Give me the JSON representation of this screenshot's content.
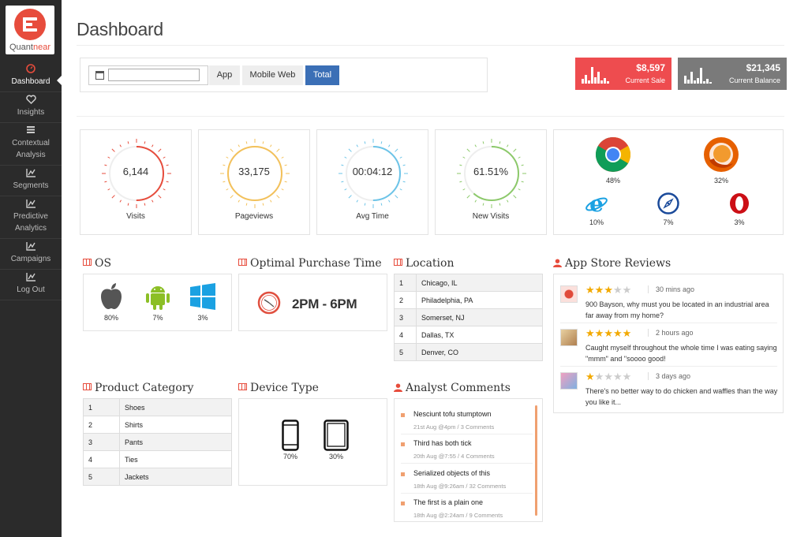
{
  "sidebar": {
    "logo_text_a": "Quant",
    "logo_text_b": "near",
    "items": [
      {
        "label": "Dashboard",
        "icon": "gauge-icon"
      },
      {
        "label": "Insights",
        "icon": "heart-icon"
      },
      {
        "label": "Contextual Analysis",
        "icon": "list-icon"
      },
      {
        "label": "Segments",
        "icon": "chart-line-icon"
      },
      {
        "label": "Predictive Analytics",
        "icon": "chart-line-icon"
      },
      {
        "label": "Campaigns",
        "icon": "chart-line-icon"
      },
      {
        "label": "Log Out",
        "icon": "chart-line-icon"
      }
    ]
  },
  "header": {
    "title": "Dashboard",
    "date_value": "",
    "tabs": [
      "App",
      "Mobile Web",
      "Total"
    ],
    "active_tab": "Total"
  },
  "kpis": {
    "current_sale": {
      "value": "$8,597",
      "label": "Current Sale",
      "color": "#ee4c4f"
    },
    "current_balance": {
      "value": "$21,345",
      "label": "Current Balance",
      "color": "#7a7a7a"
    }
  },
  "gauges": [
    {
      "value": "6,144",
      "label": "Visits",
      "color": "#e74c3c",
      "fill": 0.5
    },
    {
      "value": "33,175",
      "label": "Pageviews",
      "color": "#f3c15a",
      "fill": 1.0
    },
    {
      "value": "00:04:12",
      "label": "Avg Time",
      "color": "#6cc4e8",
      "fill": 0.5
    },
    {
      "value": "61.51%",
      "label": "New Visits",
      "color": "#8cc96a",
      "fill": 0.6151
    }
  ],
  "browsers": [
    {
      "name": "chrome-icon",
      "pct": "48%"
    },
    {
      "name": "firefox-icon",
      "pct": "32%"
    },
    {
      "name": "ie-icon",
      "pct": "10%"
    },
    {
      "name": "safari-icon",
      "pct": "7%"
    },
    {
      "name": "opera-icon",
      "pct": "3%"
    }
  ],
  "os": {
    "title": "OS",
    "items": [
      {
        "name": "apple-icon",
        "pct": "80%"
      },
      {
        "name": "android-icon",
        "pct": "7%"
      },
      {
        "name": "windows-icon",
        "pct": "3%"
      }
    ]
  },
  "purchase_time": {
    "title": "Optimal Purchase Time",
    "value": "2PM - 6PM"
  },
  "location": {
    "title": "Location",
    "rows": [
      [
        "1",
        "Chicago, IL"
      ],
      [
        "2",
        "Philadelphia, PA"
      ],
      [
        "3",
        "Somerset, NJ"
      ],
      [
        "4",
        "Dallas, TX"
      ],
      [
        "5",
        "Denver, CO"
      ]
    ]
  },
  "reviews": {
    "title": "App Store Reviews",
    "items": [
      {
        "stars": 3,
        "ago": "30 mins ago",
        "text": "900 Bayson, why must you be located in an industrial area far away from my home?"
      },
      {
        "stars": 5,
        "ago": "2 hours ago",
        "text": "Caught myself throughout the whole time I was eating saying \"mmm\" and \"soooo good!"
      },
      {
        "stars": 1,
        "ago": "3 days ago",
        "text": "There's no better way to do chicken and waffles than the way you like it..."
      }
    ]
  },
  "product_category": {
    "title": "Product Category",
    "rows": [
      [
        "1",
        "Shoes"
      ],
      [
        "2",
        "Shirts"
      ],
      [
        "3",
        "Pants"
      ],
      [
        "4",
        "Ties"
      ],
      [
        "5",
        "Jackets"
      ]
    ]
  },
  "device_type": {
    "title": "Device Type",
    "items": [
      {
        "name": "phone-icon",
        "pct": "70%"
      },
      {
        "name": "tablet-icon",
        "pct": "30%"
      }
    ]
  },
  "comments": {
    "title": "Analyst Comments",
    "items": [
      {
        "title": "Nesciunt tofu stumptown",
        "meta": "21st Aug @4pm / 3 Comments"
      },
      {
        "title": "Third has both tick",
        "meta": "20th Aug @7:55 / 4 Comments"
      },
      {
        "title": "Serialized objects of this",
        "meta": "18th Aug @9:26am / 32 Comments"
      },
      {
        "title": "The first is a plain one",
        "meta": "18th Aug @2:24am / 9 Comments"
      }
    ]
  }
}
